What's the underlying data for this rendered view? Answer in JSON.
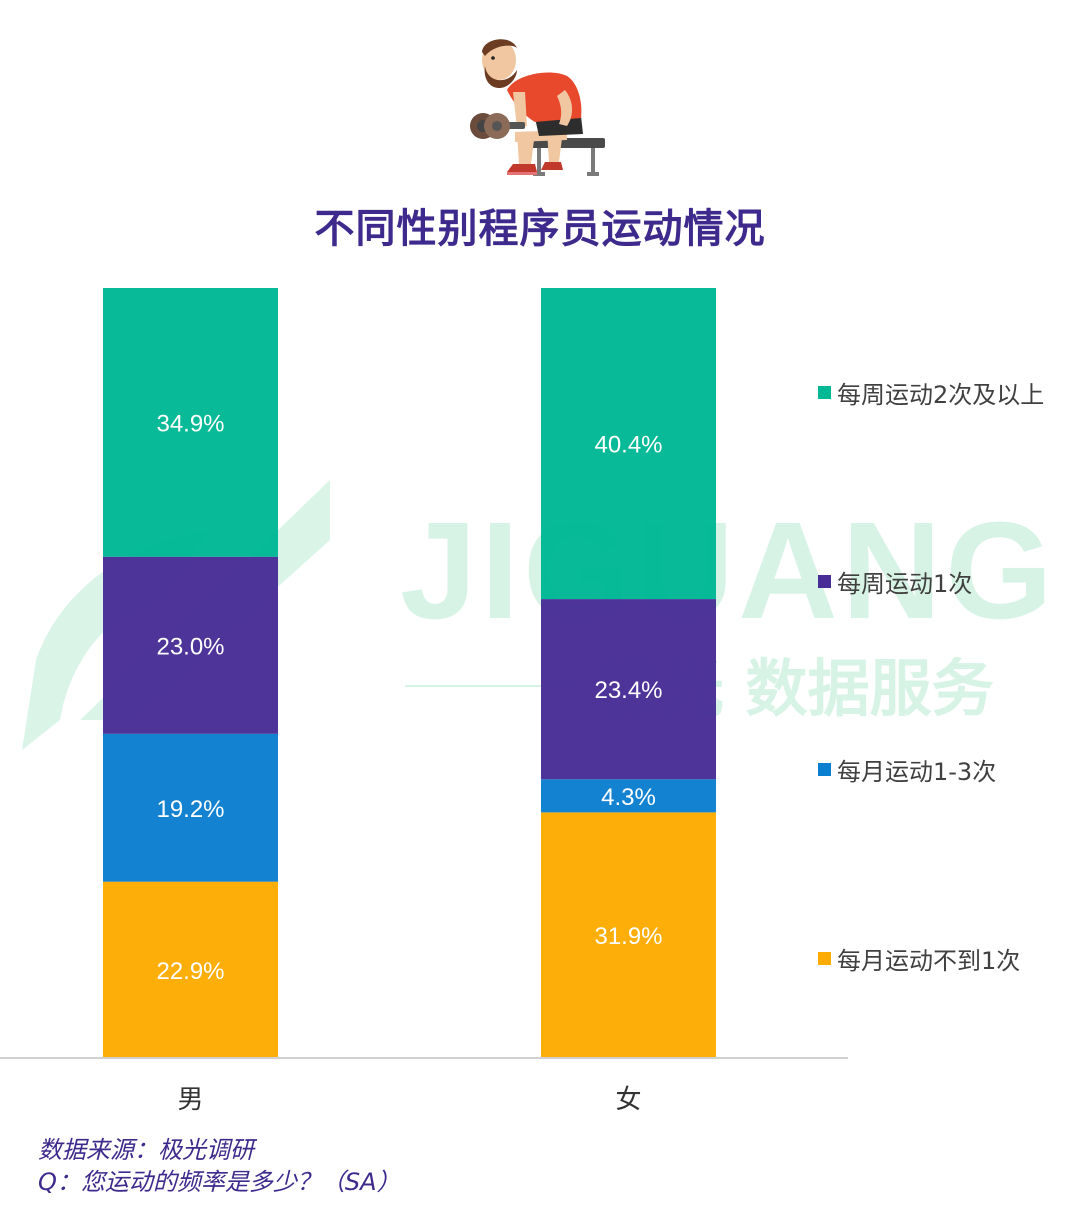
{
  "title": "不同性别程序员运动情况",
  "watermark": {
    "brand": "JIGUANG",
    "tagline": "极光 数据服务"
  },
  "colors": {
    "twice_weekly": "#00b894",
    "once_weekly": "#482d96",
    "monthly_1_3": "#0a7ecf",
    "less_monthly": "#fdab00",
    "title": "#3e2a8c",
    "watermark": "#c9eedd"
  },
  "chart_data": {
    "type": "bar",
    "stacked": true,
    "categories": [
      "男",
      "女"
    ],
    "series": [
      {
        "name": "每月运动不到1次",
        "values": [
          22.9,
          31.9
        ],
        "labels": [
          "22.9%",
          "31.9%"
        ]
      },
      {
        "name": "每月运动1-3次",
        "values": [
          19.2,
          4.3
        ],
        "labels": [
          "19.2%",
          "4.3%"
        ]
      },
      {
        "name": "每周运动1次",
        "values": [
          23.0,
          23.4
        ],
        "labels": [
          "23.0%",
          "23.4%"
        ]
      },
      {
        "name": "每周运动2次及以上",
        "values": [
          34.9,
          40.4
        ],
        "labels": [
          "34.9%",
          "40.4%"
        ]
      }
    ],
    "ylim": [
      0,
      100
    ],
    "legend_position": "right",
    "legend": [
      "每周运动2次及以上",
      "每周运动1次",
      "每月运动1-3次",
      "每月运动不到1次"
    ]
  },
  "footer": {
    "source": "数据来源：极光调研",
    "question": "Q：您运动的频率是多少？（SA）"
  }
}
